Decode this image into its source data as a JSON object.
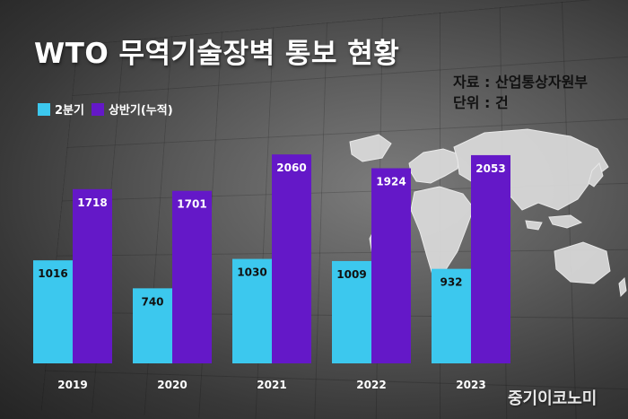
{
  "title": "WTO 무역기술장벽 통보 현황",
  "source": {
    "line1": "자료 : 산업통상자원부",
    "line2": "단위 : 건"
  },
  "logo": "중기이코노미",
  "colors": {
    "q2": "#3cc8ee",
    "h1": "#6418c8",
    "background": "#4a4a4a",
    "map": "#dcdcdc"
  },
  "chart_data": {
    "type": "bar",
    "title": "WTO 무역기술장벽 통보 현황",
    "categories": [
      "2019",
      "2020",
      "2021",
      "2022",
      "2023"
    ],
    "series": [
      {
        "name": "2분기",
        "values": [
          1016,
          740,
          1030,
          1009,
          932
        ],
        "color": "#3cc8ee"
      },
      {
        "name": "상반기(누적)",
        "values": [
          1718,
          1701,
          2060,
          1924,
          2053
        ],
        "color": "#6418c8"
      }
    ],
    "ylim": [
      0,
      2300
    ],
    "legend_position": "top-left",
    "data_labels": "inside-top",
    "grid": false
  }
}
